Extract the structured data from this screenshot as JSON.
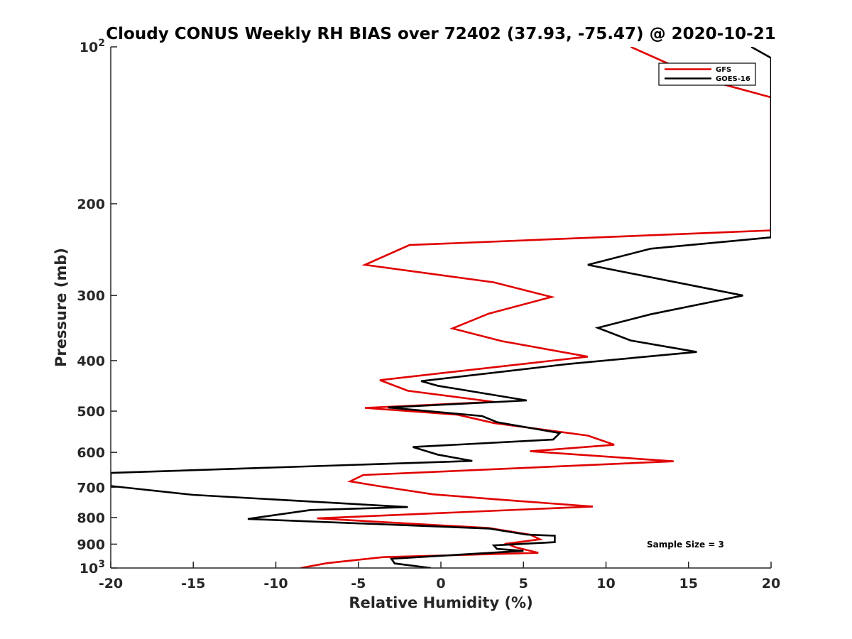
{
  "chart_data": {
    "type": "line",
    "title": "Cloudy CONUS Weekly RH BIAS over 72402 (37.93, -75.47) @ 2020-10-21",
    "xlabel": "Relative Humidity (%)",
    "ylabel": "Pressure (mb)",
    "xlim": [
      -20,
      20
    ],
    "ylim": [
      1000,
      100
    ],
    "yscale": "log",
    "y_reversed": true,
    "grid": false,
    "legend_position": "top-right",
    "xticks": [
      -20,
      -15,
      -10,
      -5,
      0,
      5,
      10,
      15,
      20
    ],
    "yticks": [
      {
        "value": 100,
        "label": "10",
        "sup": "2"
      },
      {
        "value": 200,
        "label": "200",
        "sup": ""
      },
      {
        "value": 300,
        "label": "300",
        "sup": ""
      },
      {
        "value": 400,
        "label": "400",
        "sup": ""
      },
      {
        "value": 500,
        "label": "500",
        "sup": ""
      },
      {
        "value": 600,
        "label": "600",
        "sup": ""
      },
      {
        "value": 700,
        "label": "700",
        "sup": ""
      },
      {
        "value": 800,
        "label": "800",
        "sup": ""
      },
      {
        "value": 900,
        "label": "900",
        "sup": ""
      },
      {
        "value": 1000,
        "label": "10",
        "sup": "3"
      }
    ],
    "series": [
      {
        "name": "GFS",
        "color": "#e00000",
        "points": [
          {
            "x": 11.5,
            "y": 100
          },
          {
            "x": 15.8,
            "y": 115
          },
          {
            "x": 20.0,
            "y": 125
          },
          {
            "x": 20.0,
            "y": 225
          },
          {
            "x": -1.9,
            "y": 240
          },
          {
            "x": -4.6,
            "y": 262
          },
          {
            "x": 3.2,
            "y": 283
          },
          {
            "x": 6.7,
            "y": 302
          },
          {
            "x": 2.9,
            "y": 325
          },
          {
            "x": 0.7,
            "y": 347
          },
          {
            "x": 3.7,
            "y": 367
          },
          {
            "x": 8.9,
            "y": 393
          },
          {
            "x": -3.7,
            "y": 436
          },
          {
            "x": -2.0,
            "y": 457
          },
          {
            "x": 3.2,
            "y": 480
          },
          {
            "x": -4.6,
            "y": 493
          },
          {
            "x": 1.0,
            "y": 508
          },
          {
            "x": 3.2,
            "y": 527
          },
          {
            "x": 8.9,
            "y": 557
          },
          {
            "x": 10.5,
            "y": 580
          },
          {
            "x": 5.4,
            "y": 597
          },
          {
            "x": 14.1,
            "y": 624
          },
          {
            "x": -4.7,
            "y": 663
          },
          {
            "x": -5.5,
            "y": 682
          },
          {
            "x": -3.8,
            "y": 696
          },
          {
            "x": -0.5,
            "y": 722
          },
          {
            "x": 3.5,
            "y": 739
          },
          {
            "x": 9.2,
            "y": 762
          },
          {
            "x": -7.5,
            "y": 803
          },
          {
            "x": 2.9,
            "y": 838
          },
          {
            "x": 5.4,
            "y": 863
          },
          {
            "x": 6.0,
            "y": 881
          },
          {
            "x": 4.0,
            "y": 898
          },
          {
            "x": 4.5,
            "y": 912
          },
          {
            "x": 5.9,
            "y": 935
          },
          {
            "x": -3.5,
            "y": 953
          },
          {
            "x": -6.9,
            "y": 979
          },
          {
            "x": -8.5,
            "y": 1000
          }
        ]
      },
      {
        "name": "GOES-16",
        "color": "#000000",
        "points": [
          {
            "x": 18.8,
            "y": 100
          },
          {
            "x": 20.0,
            "y": 105
          },
          {
            "x": 20.0,
            "y": 232
          },
          {
            "x": 12.7,
            "y": 244
          },
          {
            "x": 8.9,
            "y": 262
          },
          {
            "x": 18.3,
            "y": 300
          },
          {
            "x": 12.7,
            "y": 326
          },
          {
            "x": 9.5,
            "y": 346
          },
          {
            "x": 11.5,
            "y": 366
          },
          {
            "x": 15.5,
            "y": 385
          },
          {
            "x": 7.7,
            "y": 406
          },
          {
            "x": -1.2,
            "y": 438
          },
          {
            "x": -0.2,
            "y": 447
          },
          {
            "x": 5.2,
            "y": 477
          },
          {
            "x": -3.2,
            "y": 492
          },
          {
            "x": 2.5,
            "y": 511
          },
          {
            "x": 3.4,
            "y": 525
          },
          {
            "x": 7.2,
            "y": 551
          },
          {
            "x": 6.8,
            "y": 567
          },
          {
            "x": -1.7,
            "y": 586
          },
          {
            "x": -0.2,
            "y": 606
          },
          {
            "x": 1.9,
            "y": 623
          },
          {
            "x": -20.0,
            "y": 657
          },
          {
            "x": -20.0,
            "y": 696
          },
          {
            "x": -15.0,
            "y": 724
          },
          {
            "x": -2.0,
            "y": 764
          },
          {
            "x": -7.9,
            "y": 774
          },
          {
            "x": -11.7,
            "y": 805
          },
          {
            "x": 2.9,
            "y": 840
          },
          {
            "x": 5.2,
            "y": 863
          },
          {
            "x": 6.9,
            "y": 867
          },
          {
            "x": 6.9,
            "y": 892
          },
          {
            "x": 3.2,
            "y": 905
          },
          {
            "x": 3.4,
            "y": 919
          },
          {
            "x": 5.0,
            "y": 927
          },
          {
            "x": -3.0,
            "y": 960
          },
          {
            "x": -2.8,
            "y": 980
          },
          {
            "x": -0.6,
            "y": 1000
          }
        ]
      }
    ],
    "annotation": "Sample Size = 3"
  }
}
